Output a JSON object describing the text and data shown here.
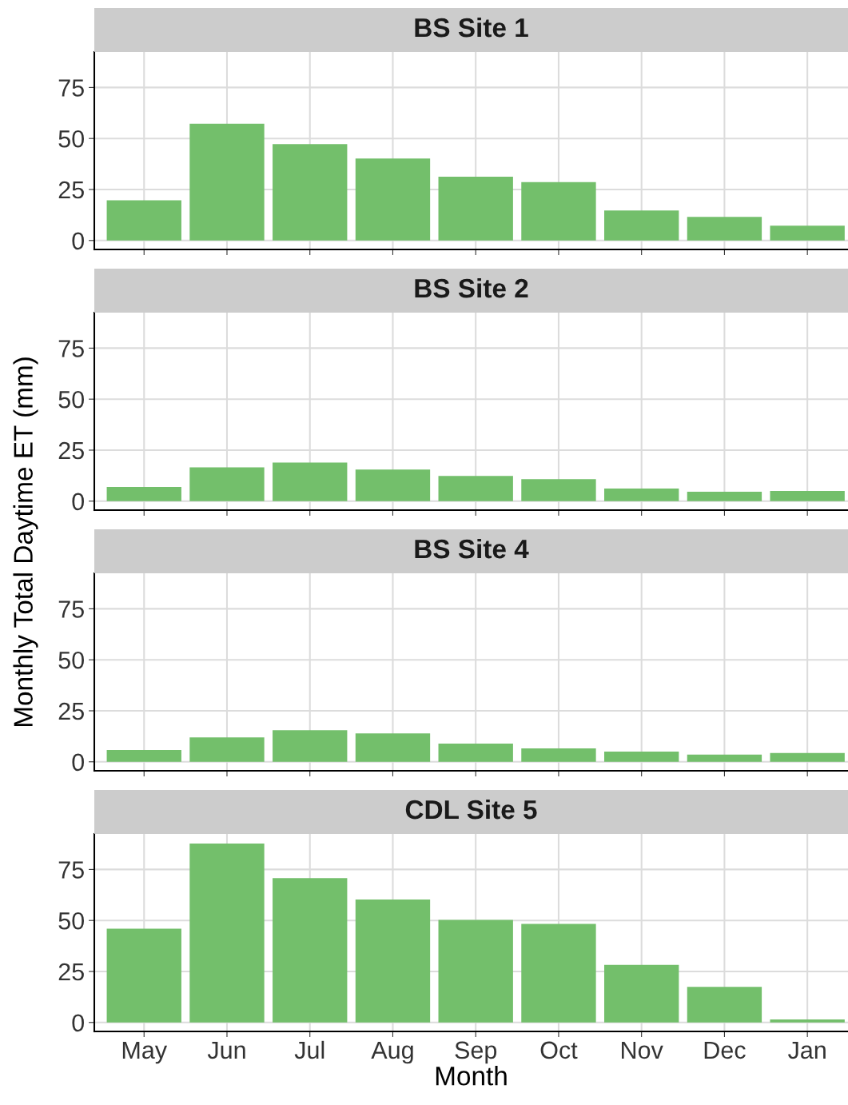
{
  "chart_data": [
    {
      "type": "bar",
      "title": "BS Site 1",
      "ylabel": "Monthly Total Daytime ET (mm)",
      "categories": [
        null,
        null,
        null,
        null,
        null,
        null,
        null,
        null,
        null
      ],
      "values": [
        19.7,
        57.2,
        47.2,
        40.2,
        31.3,
        28.6,
        14.7,
        11.6,
        7.3
      ],
      "color": "#73bf6b",
      "ylim": [
        -4.4,
        92.4
      ],
      "yticks": [
        0,
        25,
        50,
        75
      ],
      "grid": true,
      "tick_labels": "y"
    },
    {
      "type": "bar",
      "title": "BS Site 2",
      "categories": [
        null,
        null,
        null,
        null,
        null,
        null,
        null,
        null,
        null
      ],
      "values": [
        7.0,
        16.6,
        18.9,
        15.5,
        12.4,
        10.8,
        6.2,
        4.6,
        5.0
      ],
      "color": "#73bf6b",
      "ylim": [
        -4.4,
        92.4
      ],
      "yticks": [
        0,
        25,
        50,
        75
      ],
      "grid": true,
      "tick_labels": "y"
    },
    {
      "type": "bar",
      "title": "BS Site 4",
      "categories": [
        null,
        null,
        null,
        null,
        null,
        null,
        null,
        null,
        null
      ],
      "values": [
        5.8,
        12.0,
        15.5,
        13.9,
        8.9,
        6.6,
        5.0,
        3.5,
        4.3
      ],
      "color": "#73bf6b",
      "ylim": [
        -4.4,
        92.4
      ],
      "yticks": [
        0,
        25,
        50,
        75
      ],
      "grid": true,
      "tick_labels": "y"
    },
    {
      "type": "bar",
      "title": "CDL Site 5",
      "xlabel": "Month",
      "categories": [
        "May",
        "Jun",
        "Jul",
        "Aug",
        "Sep",
        "Oct",
        "Nov",
        "Dec",
        "Jan"
      ],
      "values": [
        46.0,
        87.7,
        70.7,
        60.3,
        50.3,
        48.3,
        28.2,
        17.4,
        1.5
      ],
      "color": "#73bf6b",
      "ylim": [
        -4.4,
        92.4
      ],
      "yticks": [
        0,
        25,
        50,
        75
      ],
      "grid": true
    }
  ]
}
